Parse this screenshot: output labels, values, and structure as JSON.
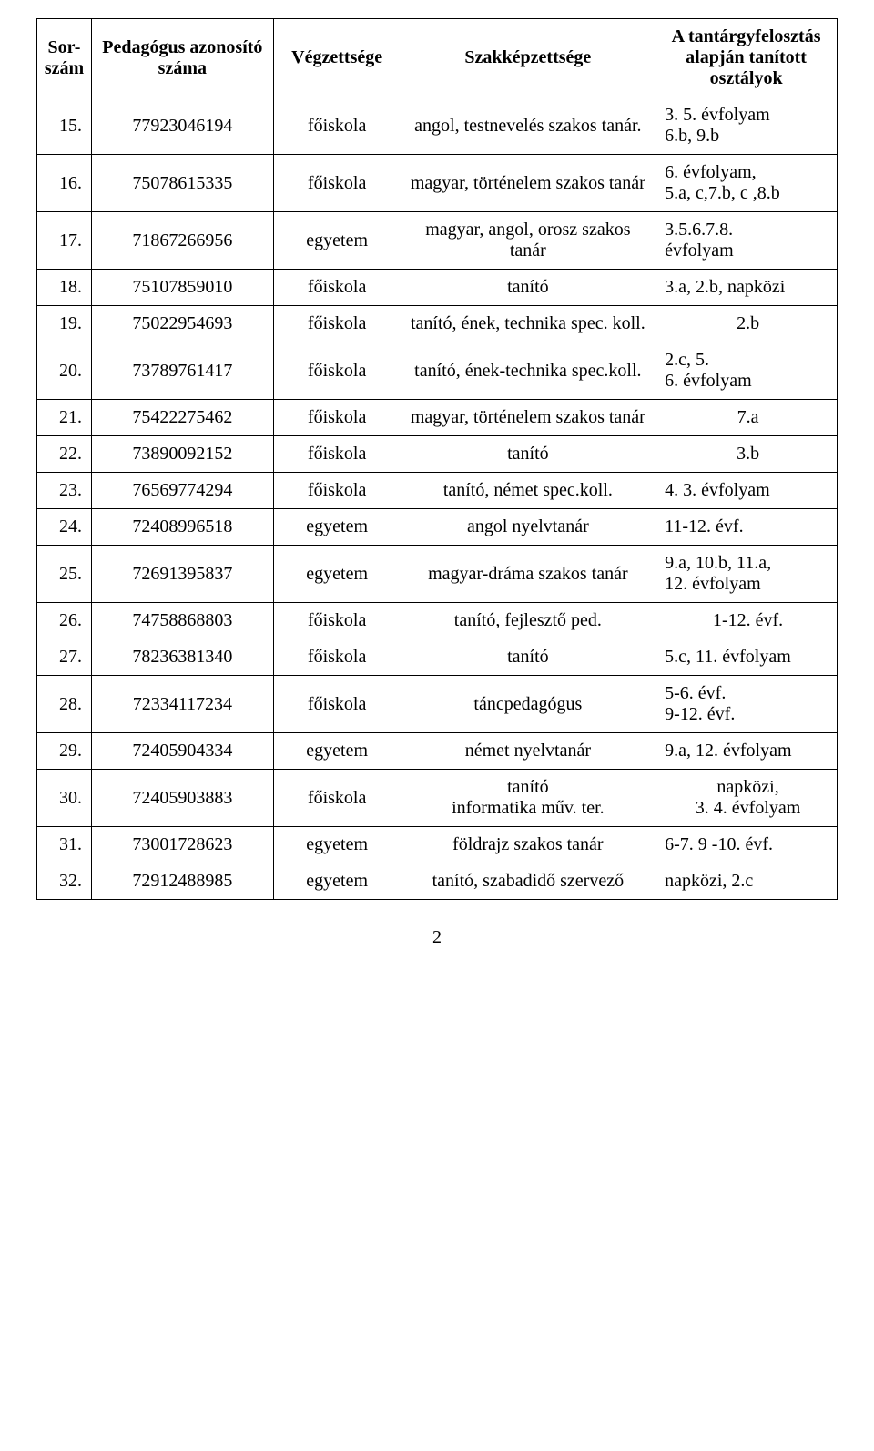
{
  "headers": {
    "sor": "Sor-szám",
    "id": "Pedagógus azonosító száma",
    "vegz": "Végzettsége",
    "szak": "Szakképzettsége",
    "oszt": "A tantárgyfelosztás alapján tanított osztályok"
  },
  "rows": [
    {
      "sor": "15.",
      "id": "77923046194",
      "vegz": "főiskola",
      "szak": "angol, testnevelés szakos tanár.",
      "oszt": [
        "3. 5. évfolyam",
        "6.b, 9.b"
      ]
    },
    {
      "sor": "16.",
      "id": "75078615335",
      "vegz": "főiskola",
      "szak": "magyar, történelem szakos tanár",
      "oszt": [
        "6. évfolyam,",
        "5.a, c,7.b, c ,8.b"
      ]
    },
    {
      "sor": "17.",
      "id": "71867266956",
      "vegz": "egyetem",
      "szak": "magyar, angol, orosz szakos tanár",
      "oszt": [
        "3.5.6.7.8.",
        "évfolyam"
      ]
    },
    {
      "sor": "18.",
      "id": "75107859010",
      "vegz": "főiskola",
      "szak": "tanító",
      "oszt": [
        "3.a, 2.b, napközi"
      ]
    },
    {
      "sor": "19.",
      "id": "75022954693",
      "vegz": "főiskola",
      "szak": "tanító, ének, technika spec. koll.",
      "oszt": [
        "2.b"
      ],
      "osztCenter": true
    },
    {
      "sor": "20.",
      "id": "73789761417",
      "vegz": "főiskola",
      "szak": "tanító, ének-technika spec.koll.",
      "oszt": [
        "2.c, 5.",
        "6. évfolyam"
      ]
    },
    {
      "sor": "21.",
      "id": "75422275462",
      "vegz": "főiskola",
      "szak": "magyar, történelem szakos tanár",
      "oszt": [
        "7.a"
      ],
      "osztCenter": true
    },
    {
      "sor": "22.",
      "id": "73890092152",
      "vegz": "főiskola",
      "szak": "tanító",
      "oszt": [
        "3.b"
      ],
      "osztCenter": true
    },
    {
      "sor": "23.",
      "id": "76569774294",
      "vegz": "főiskola",
      "szak": "tanító, német spec.koll.",
      "oszt": [
        "4. 3. évfolyam"
      ]
    },
    {
      "sor": "24.",
      "id": "72408996518",
      "vegz": "egyetem",
      "szak": "angol nyelvtanár",
      "oszt": [
        "11-12. évf."
      ]
    },
    {
      "sor": "25.",
      "id": "72691395837",
      "vegz": "egyetem",
      "szak": "magyar-dráma szakos tanár",
      "oszt": [
        "9.a, 10.b, 11.a,",
        "12. évfolyam"
      ]
    },
    {
      "sor": "26.",
      "id": "74758868803",
      "vegz": "főiskola",
      "szak": "tanító, fejlesztő ped.",
      "oszt": [
        "1-12. évf."
      ],
      "osztCenter": true
    },
    {
      "sor": "27.",
      "id": "78236381340",
      "vegz": "főiskola",
      "szak": "tanító",
      "oszt": [
        "5.c, 11. évfolyam"
      ]
    },
    {
      "sor": "28.",
      "id": "72334117234",
      "vegz": "főiskola",
      "szak": "táncpedagógus",
      "oszt": [
        "5-6. évf.",
        "9-12. évf."
      ]
    },
    {
      "sor": "29.",
      "id": "72405904334",
      "vegz": "egyetem",
      "szak": "német nyelvtanár",
      "oszt": [
        "9.a, 12. évfolyam"
      ]
    },
    {
      "sor": "30.",
      "id": "72405903883",
      "vegz": "főiskola",
      "szak": "tanító\ninformatika műv. ter.",
      "oszt": [
        "napközi,",
        "3. 4. évfolyam"
      ],
      "osztCenter": true
    },
    {
      "sor": "31.",
      "id": "73001728623",
      "vegz": "egyetem",
      "szak": "földrajz szakos tanár",
      "oszt": [
        "6-7.  9 -10. évf."
      ]
    },
    {
      "sor": "32.",
      "id": "72912488985",
      "vegz": "egyetem",
      "szak": "tanító, szabadidő szervező",
      "oszt": [
        "napközi, 2.c"
      ]
    }
  ],
  "pageNumber": "2"
}
